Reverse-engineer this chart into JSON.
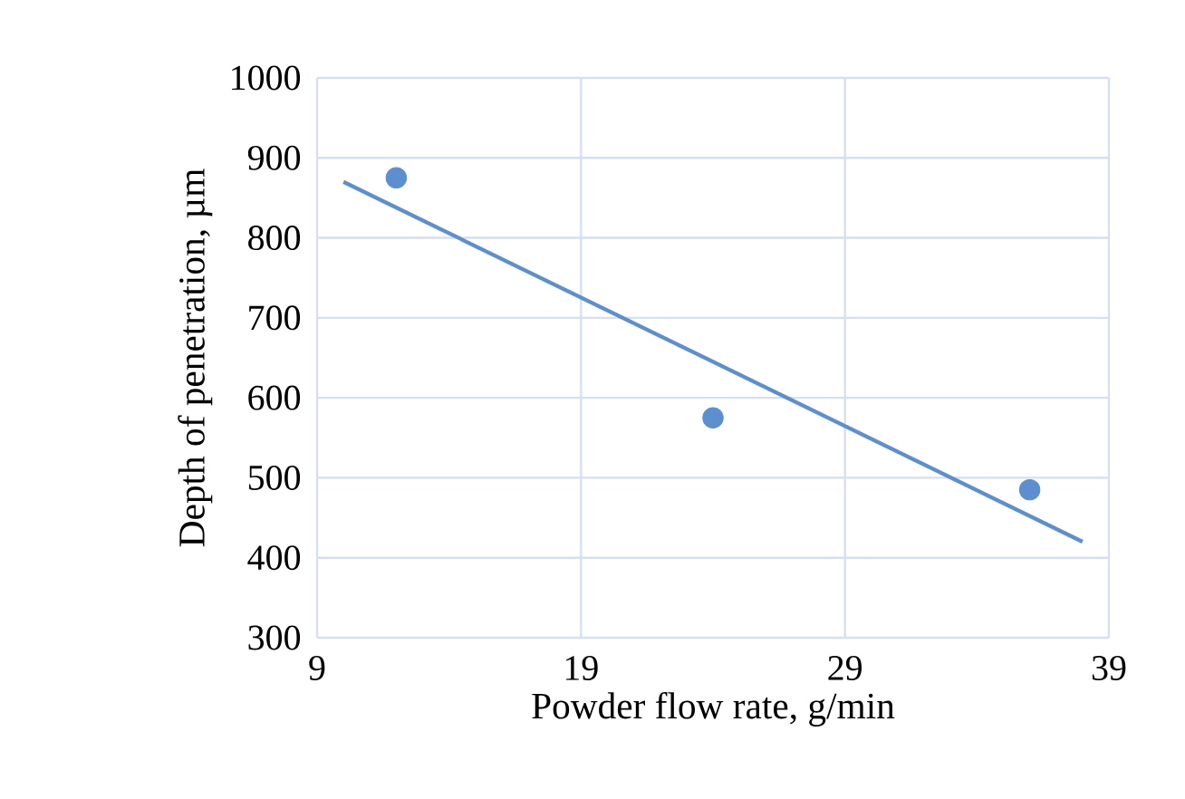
{
  "chart_data": {
    "type": "scatter",
    "xlabel": "Powder flow rate, g/min",
    "ylabel": "Depth of penetration, µm",
    "series": [
      {
        "color": "#5b8fd0",
        "marker": "circle",
        "x": [
          12,
          24,
          36
        ],
        "values": [
          875,
          575,
          485
        ]
      },
      {
        "type": "line",
        "color": "#5b8fd0",
        "marker": "none",
        "x": [
          10,
          38
        ],
        "values": [
          870,
          420
        ]
      }
    ],
    "xlim": [
      9,
      39
    ],
    "xticks": [
      9,
      19,
      29,
      39
    ],
    "ylim": [
      300,
      1000
    ],
    "yticks": [
      300,
      400,
      500,
      600,
      700,
      800,
      900,
      1000
    ],
    "grid": true
  }
}
